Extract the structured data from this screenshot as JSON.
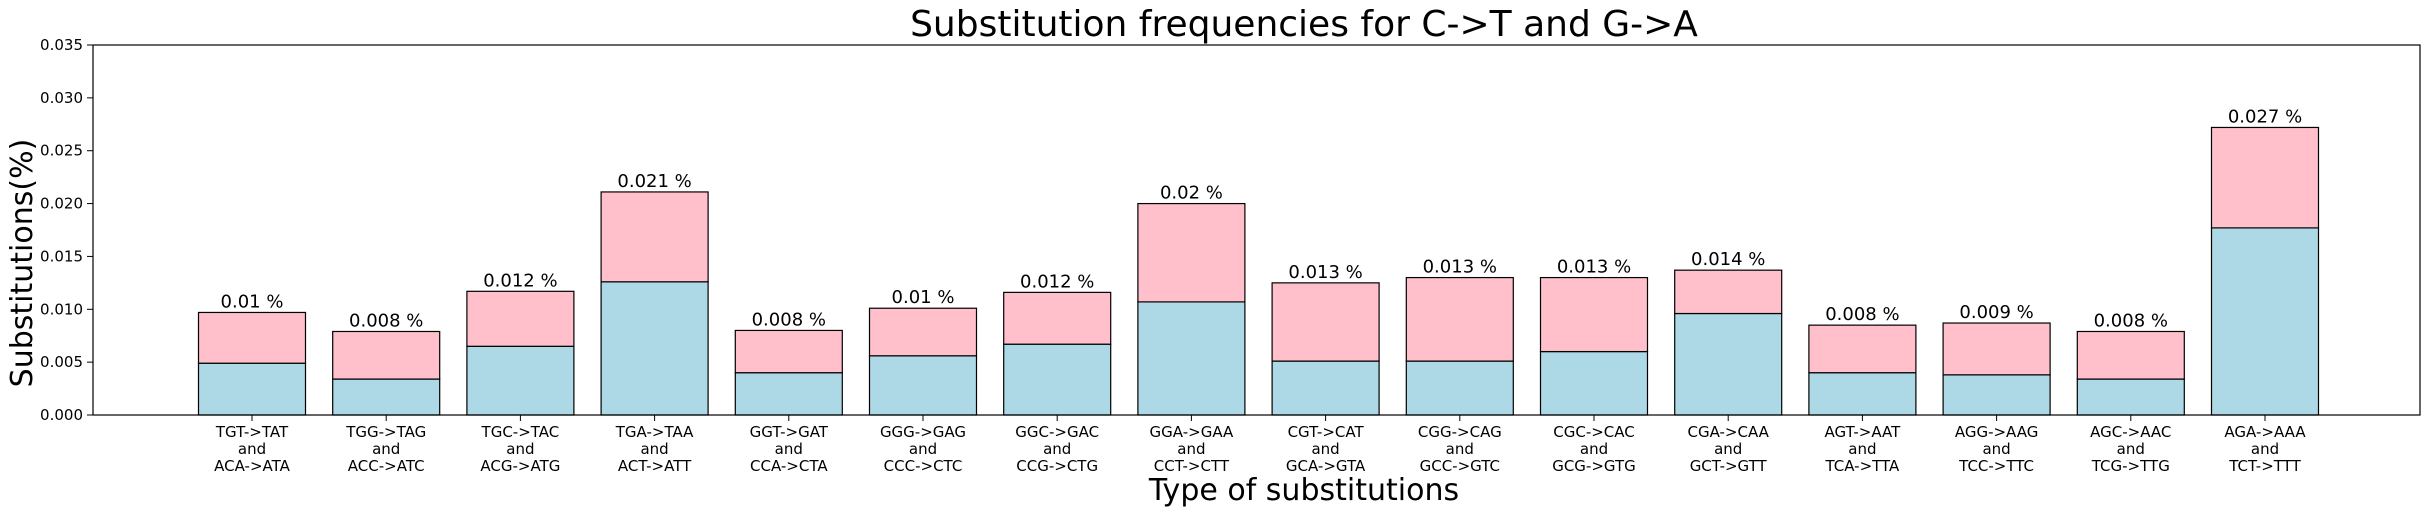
{
  "chart_data": {
    "type": "bar",
    "stacked": true,
    "title": "Substitution frequencies for C->T and G->A",
    "xlabel": "Type of substitutions",
    "ylabel": "Substitutions(%)",
    "ylim": [
      0,
      0.035
    ],
    "yticks": [
      "0.000",
      "0.005",
      "0.010",
      "0.015",
      "0.020",
      "0.025",
      "0.030",
      "0.035"
    ],
    "categories": [
      [
        "TGT->TAT",
        "and",
        "ACA->ATA"
      ],
      [
        "TGG->TAG",
        "and",
        "ACC->ATC"
      ],
      [
        "TGC->TAC",
        "and",
        "ACG->ATG"
      ],
      [
        "TGA->TAA",
        "and",
        "ACT->ATT"
      ],
      [
        "GGT->GAT",
        "and",
        "CCA->CTA"
      ],
      [
        "GGG->GAG",
        "and",
        "CCC->CTC"
      ],
      [
        "GGC->GAC",
        "and",
        "CCG->CTG"
      ],
      [
        "GGA->GAA",
        "and",
        "CCT->CTT"
      ],
      [
        "CGT->CAT",
        "and",
        "GCA->GTA"
      ],
      [
        "CGG->CAG",
        "and",
        "GCC->GTC"
      ],
      [
        "CGC->CAC",
        "and",
        "GCG->GTG"
      ],
      [
        "CGA->CAA",
        "and",
        "GCT->GTT"
      ],
      [
        "AGT->AAT",
        "and",
        "TCA->TTA"
      ],
      [
        "AGG->AAG",
        "and",
        "TCC->TTC"
      ],
      [
        "AGC->AAC",
        "and",
        "TCG->TTG"
      ],
      [
        "AGA->AAA",
        "and",
        "TCT->TTT"
      ]
    ],
    "series": [
      {
        "color": "#add8e6",
        "values": [
          0.0049,
          0.0034,
          0.0065,
          0.0126,
          0.004,
          0.0056,
          0.0067,
          0.0107,
          0.0051,
          0.0051,
          0.006,
          0.0096,
          0.004,
          0.0038,
          0.0034,
          0.0177
        ]
      },
      {
        "color": "#ffc0cb",
        "values": [
          0.0048,
          0.0045,
          0.0052,
          0.0085,
          0.004,
          0.0045,
          0.0049,
          0.0093,
          0.0074,
          0.0079,
          0.007,
          0.0041,
          0.0045,
          0.0049,
          0.0045,
          0.0095
        ]
      }
    ],
    "data_labels": [
      "0.01 %",
      "0.008 %",
      "0.012 %",
      "0.021 %",
      "0.008 %",
      "0.01 %",
      "0.012 %",
      "0.02 %",
      "0.013 %",
      "0.013 %",
      "0.013 %",
      "0.014 %",
      "0.008 %",
      "0.009 %",
      "0.008 %",
      "0.027 %"
    ],
    "grid": false,
    "legend": false
  }
}
